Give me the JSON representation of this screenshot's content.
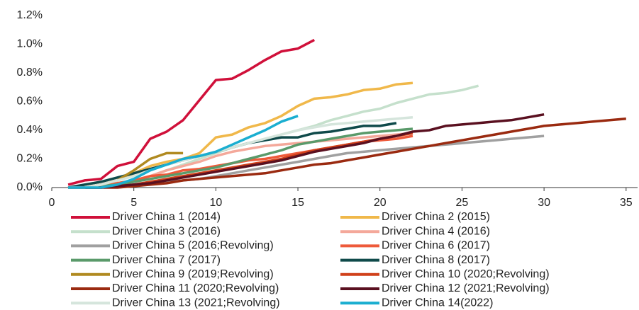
{
  "chart_data": {
    "type": "line",
    "xlim": [
      0,
      35.7
    ],
    "xticks": [
      0,
      5,
      10,
      15,
      20,
      25,
      30,
      35
    ],
    "ylim": [
      0,
      1.2
    ],
    "yticks": [
      {
        "value": 0,
        "label": "0.0%"
      },
      {
        "value": 0.2,
        "label": "0.2%"
      },
      {
        "value": 0.4,
        "label": "0.4%"
      },
      {
        "value": 0.6,
        "label": "0.6%"
      },
      {
        "value": 0.8,
        "label": "0.8%"
      },
      {
        "value": 1.0,
        "label": "1.0%"
      },
      {
        "value": 1.2,
        "label": "1.2%"
      }
    ],
    "grid": false,
    "series": [
      {
        "name": "Driver China 1 (2014)",
        "color": "#d0103a",
        "x": [
          1,
          2,
          3,
          4,
          5,
          6,
          7,
          8,
          9,
          10,
          11,
          12,
          13,
          14,
          15,
          16
        ],
        "values": [
          0.02,
          0.05,
          0.06,
          0.15,
          0.18,
          0.34,
          0.39,
          0.47,
          0.61,
          0.75,
          0.76,
          0.82,
          0.89,
          0.95,
          0.97,
          1.03
        ]
      },
      {
        "name": "Driver China 2 (2015)",
        "color": "#f0b84a",
        "x": [
          1,
          2,
          3,
          4,
          5,
          6,
          7,
          8,
          9,
          10,
          11,
          12,
          13,
          14,
          15,
          16,
          17,
          18,
          19,
          20,
          21,
          22
        ],
        "values": [
          0,
          0,
          0.02,
          0.05,
          0.1,
          0.15,
          0.18,
          0.2,
          0.24,
          0.35,
          0.37,
          0.42,
          0.45,
          0.5,
          0.57,
          0.62,
          0.63,
          0.65,
          0.68,
          0.69,
          0.72,
          0.73
        ]
      },
      {
        "name": "Driver China 3 (2016)",
        "color": "#c5e0cc",
        "x": [
          1,
          2,
          3,
          4,
          5,
          6,
          7,
          8,
          9,
          10,
          11,
          12,
          13,
          14,
          15,
          16,
          17,
          18,
          19,
          20,
          21,
          22,
          23,
          24,
          25,
          26
        ],
        "values": [
          0,
          0,
          0.01,
          0.03,
          0.05,
          0.08,
          0.12,
          0.16,
          0.2,
          0.24,
          0.28,
          0.31,
          0.34,
          0.37,
          0.4,
          0.43,
          0.47,
          0.5,
          0.53,
          0.55,
          0.59,
          0.62,
          0.65,
          0.66,
          0.68,
          0.71
        ]
      },
      {
        "name": "Driver China 4 (2016)",
        "color": "#f4a89a",
        "x": [
          1,
          2,
          3,
          4,
          5,
          6,
          7,
          8,
          9,
          10,
          11,
          12,
          13,
          14,
          15,
          16,
          17,
          18,
          19,
          20,
          21,
          22
        ],
        "values": [
          0,
          0,
          0.01,
          0.03,
          0.05,
          0.08,
          0.12,
          0.15,
          0.18,
          0.22,
          0.25,
          0.27,
          0.29,
          0.3,
          0.31,
          0.32,
          0.33,
          0.34,
          0.35,
          0.36,
          0.37,
          0.38
        ]
      },
      {
        "name": "Driver China 5 (2016;Revolving)",
        "color": "#a0a0a0",
        "x": [
          1,
          2,
          3,
          4,
          5,
          6,
          7,
          8,
          9,
          10,
          11,
          12,
          13,
          14,
          15,
          16,
          17,
          18,
          19,
          20,
          21,
          22,
          23,
          24,
          25,
          26,
          27,
          28,
          29,
          30
        ],
        "values": [
          0,
          0,
          0,
          0.01,
          0.02,
          0.03,
          0.04,
          0.05,
          0.06,
          0.08,
          0.1,
          0.12,
          0.14,
          0.16,
          0.18,
          0.2,
          0.22,
          0.24,
          0.25,
          0.26,
          0.27,
          0.28,
          0.29,
          0.3,
          0.31,
          0.32,
          0.33,
          0.34,
          0.35,
          0.36
        ]
      },
      {
        "name": "Driver China 6 (2017)",
        "color": "#ee5a3a",
        "x": [
          1,
          2,
          3,
          4,
          5,
          6,
          7,
          8,
          9,
          10,
          11,
          12,
          13,
          14,
          15,
          16,
          17,
          18,
          19,
          20,
          21,
          22
        ],
        "values": [
          0,
          0,
          0.01,
          0.03,
          0.05,
          0.08,
          0.09,
          0.12,
          0.13,
          0.15,
          0.17,
          0.19,
          0.2,
          0.22,
          0.24,
          0.26,
          0.28,
          0.3,
          0.32,
          0.33,
          0.34,
          0.36
        ]
      },
      {
        "name": "Driver China 7 (2017)",
        "color": "#5a9a6a",
        "x": [
          1,
          2,
          3,
          4,
          5,
          6,
          7,
          8,
          9,
          10,
          11,
          12,
          13,
          14,
          15,
          16,
          17,
          18,
          19,
          20,
          21,
          22
        ],
        "values": [
          0,
          0,
          0.01,
          0.02,
          0.04,
          0.06,
          0.08,
          0.1,
          0.12,
          0.14,
          0.17,
          0.2,
          0.23,
          0.26,
          0.3,
          0.32,
          0.34,
          0.36,
          0.38,
          0.39,
          0.4,
          0.41
        ]
      },
      {
        "name": "Driver China 8 (2017)",
        "color": "#0f4a4a",
        "x": [
          1,
          2,
          3,
          4,
          5,
          6,
          7,
          8,
          9,
          10,
          11,
          12,
          13,
          14,
          15,
          16,
          17,
          18,
          19,
          20,
          21
        ],
        "values": [
          0,
          0.02,
          0.04,
          0.07,
          0.1,
          0.13,
          0.16,
          0.19,
          0.22,
          0.25,
          0.28,
          0.31,
          0.33,
          0.35,
          0.35,
          0.38,
          0.39,
          0.41,
          0.43,
          0.43,
          0.45
        ]
      },
      {
        "name": "Driver China 9 (2019;Revolving)",
        "color": "#b08a20",
        "x": [
          1,
          2,
          3,
          4,
          5,
          6,
          7,
          8
        ],
        "values": [
          0,
          0,
          0.02,
          0.05,
          0.12,
          0.2,
          0.24,
          0.24
        ]
      },
      {
        "name": "Driver China 10 (2020;Revolving)",
        "color": "#d0401a",
        "x": [
          1,
          2,
          3,
          4,
          5,
          6,
          7,
          8,
          9,
          10,
          11,
          12,
          13,
          14,
          15,
          16,
          17,
          18,
          19,
          20,
          21,
          22
        ],
        "values": [
          0,
          0,
          0,
          0.01,
          0.02,
          0.04,
          0.06,
          0.08,
          0.1,
          0.12,
          0.14,
          0.16,
          0.18,
          0.2,
          0.23,
          0.26,
          0.28,
          0.3,
          0.32,
          0.34,
          0.36,
          0.38
        ]
      },
      {
        "name": "Driver China 11 (2020;Revolving)",
        "color": "#9a2a10",
        "x": [
          1,
          2,
          3,
          4,
          5,
          6,
          7,
          8,
          9,
          10,
          11,
          12,
          13,
          14,
          15,
          16,
          17,
          18,
          19,
          20,
          21,
          22,
          23,
          24,
          25,
          26,
          27,
          28,
          29,
          30,
          31,
          32,
          33,
          34,
          35
        ],
        "values": [
          0,
          0,
          0,
          0,
          0.01,
          0.02,
          0.03,
          0.05,
          0.06,
          0.07,
          0.08,
          0.09,
          0.1,
          0.12,
          0.14,
          0.16,
          0.17,
          0.19,
          0.21,
          0.23,
          0.25,
          0.27,
          0.29,
          0.31,
          0.33,
          0.35,
          0.37,
          0.39,
          0.41,
          0.43,
          0.44,
          0.45,
          0.46,
          0.47,
          0.48
        ]
      },
      {
        "name": "Driver China 12 (2021;Revolving)",
        "color": "#5a1020",
        "x": [
          1,
          2,
          3,
          4,
          5,
          6,
          7,
          8,
          9,
          10,
          11,
          12,
          13,
          14,
          15,
          16,
          17,
          18,
          19,
          20,
          21,
          22,
          23,
          24,
          25,
          26,
          27,
          28,
          29,
          30
        ],
        "values": [
          0,
          0,
          0,
          0.01,
          0.02,
          0.03,
          0.05,
          0.07,
          0.09,
          0.11,
          0.13,
          0.15,
          0.17,
          0.19,
          0.22,
          0.25,
          0.27,
          0.29,
          0.31,
          0.34,
          0.36,
          0.39,
          0.4,
          0.43,
          0.44,
          0.45,
          0.46,
          0.47,
          0.49,
          0.51
        ]
      },
      {
        "name": "Driver China 13 (2021;Revolving)",
        "color": "#d5e5dc",
        "x": [
          1,
          2,
          3,
          4,
          5,
          6,
          7,
          8,
          9,
          10,
          11,
          12,
          13,
          14,
          15,
          16,
          17,
          18,
          19,
          20,
          21,
          22
        ],
        "values": [
          0,
          0,
          0.02,
          0.05,
          0.08,
          0.12,
          0.16,
          0.19,
          0.22,
          0.25,
          0.28,
          0.31,
          0.34,
          0.37,
          0.4,
          0.42,
          0.44,
          0.45,
          0.46,
          0.47,
          0.48,
          0.49
        ]
      },
      {
        "name": "Driver China 14(2022)",
        "color": "#1aaed0",
        "x": [
          1,
          2,
          3,
          4,
          5,
          6,
          7,
          8,
          9,
          10,
          11,
          12,
          13,
          14,
          15
        ],
        "values": [
          0,
          0,
          0,
          0.02,
          0.06,
          0.12,
          0.16,
          0.2,
          0.22,
          0.25,
          0.3,
          0.35,
          0.4,
          0.46,
          0.5
        ]
      }
    ]
  }
}
